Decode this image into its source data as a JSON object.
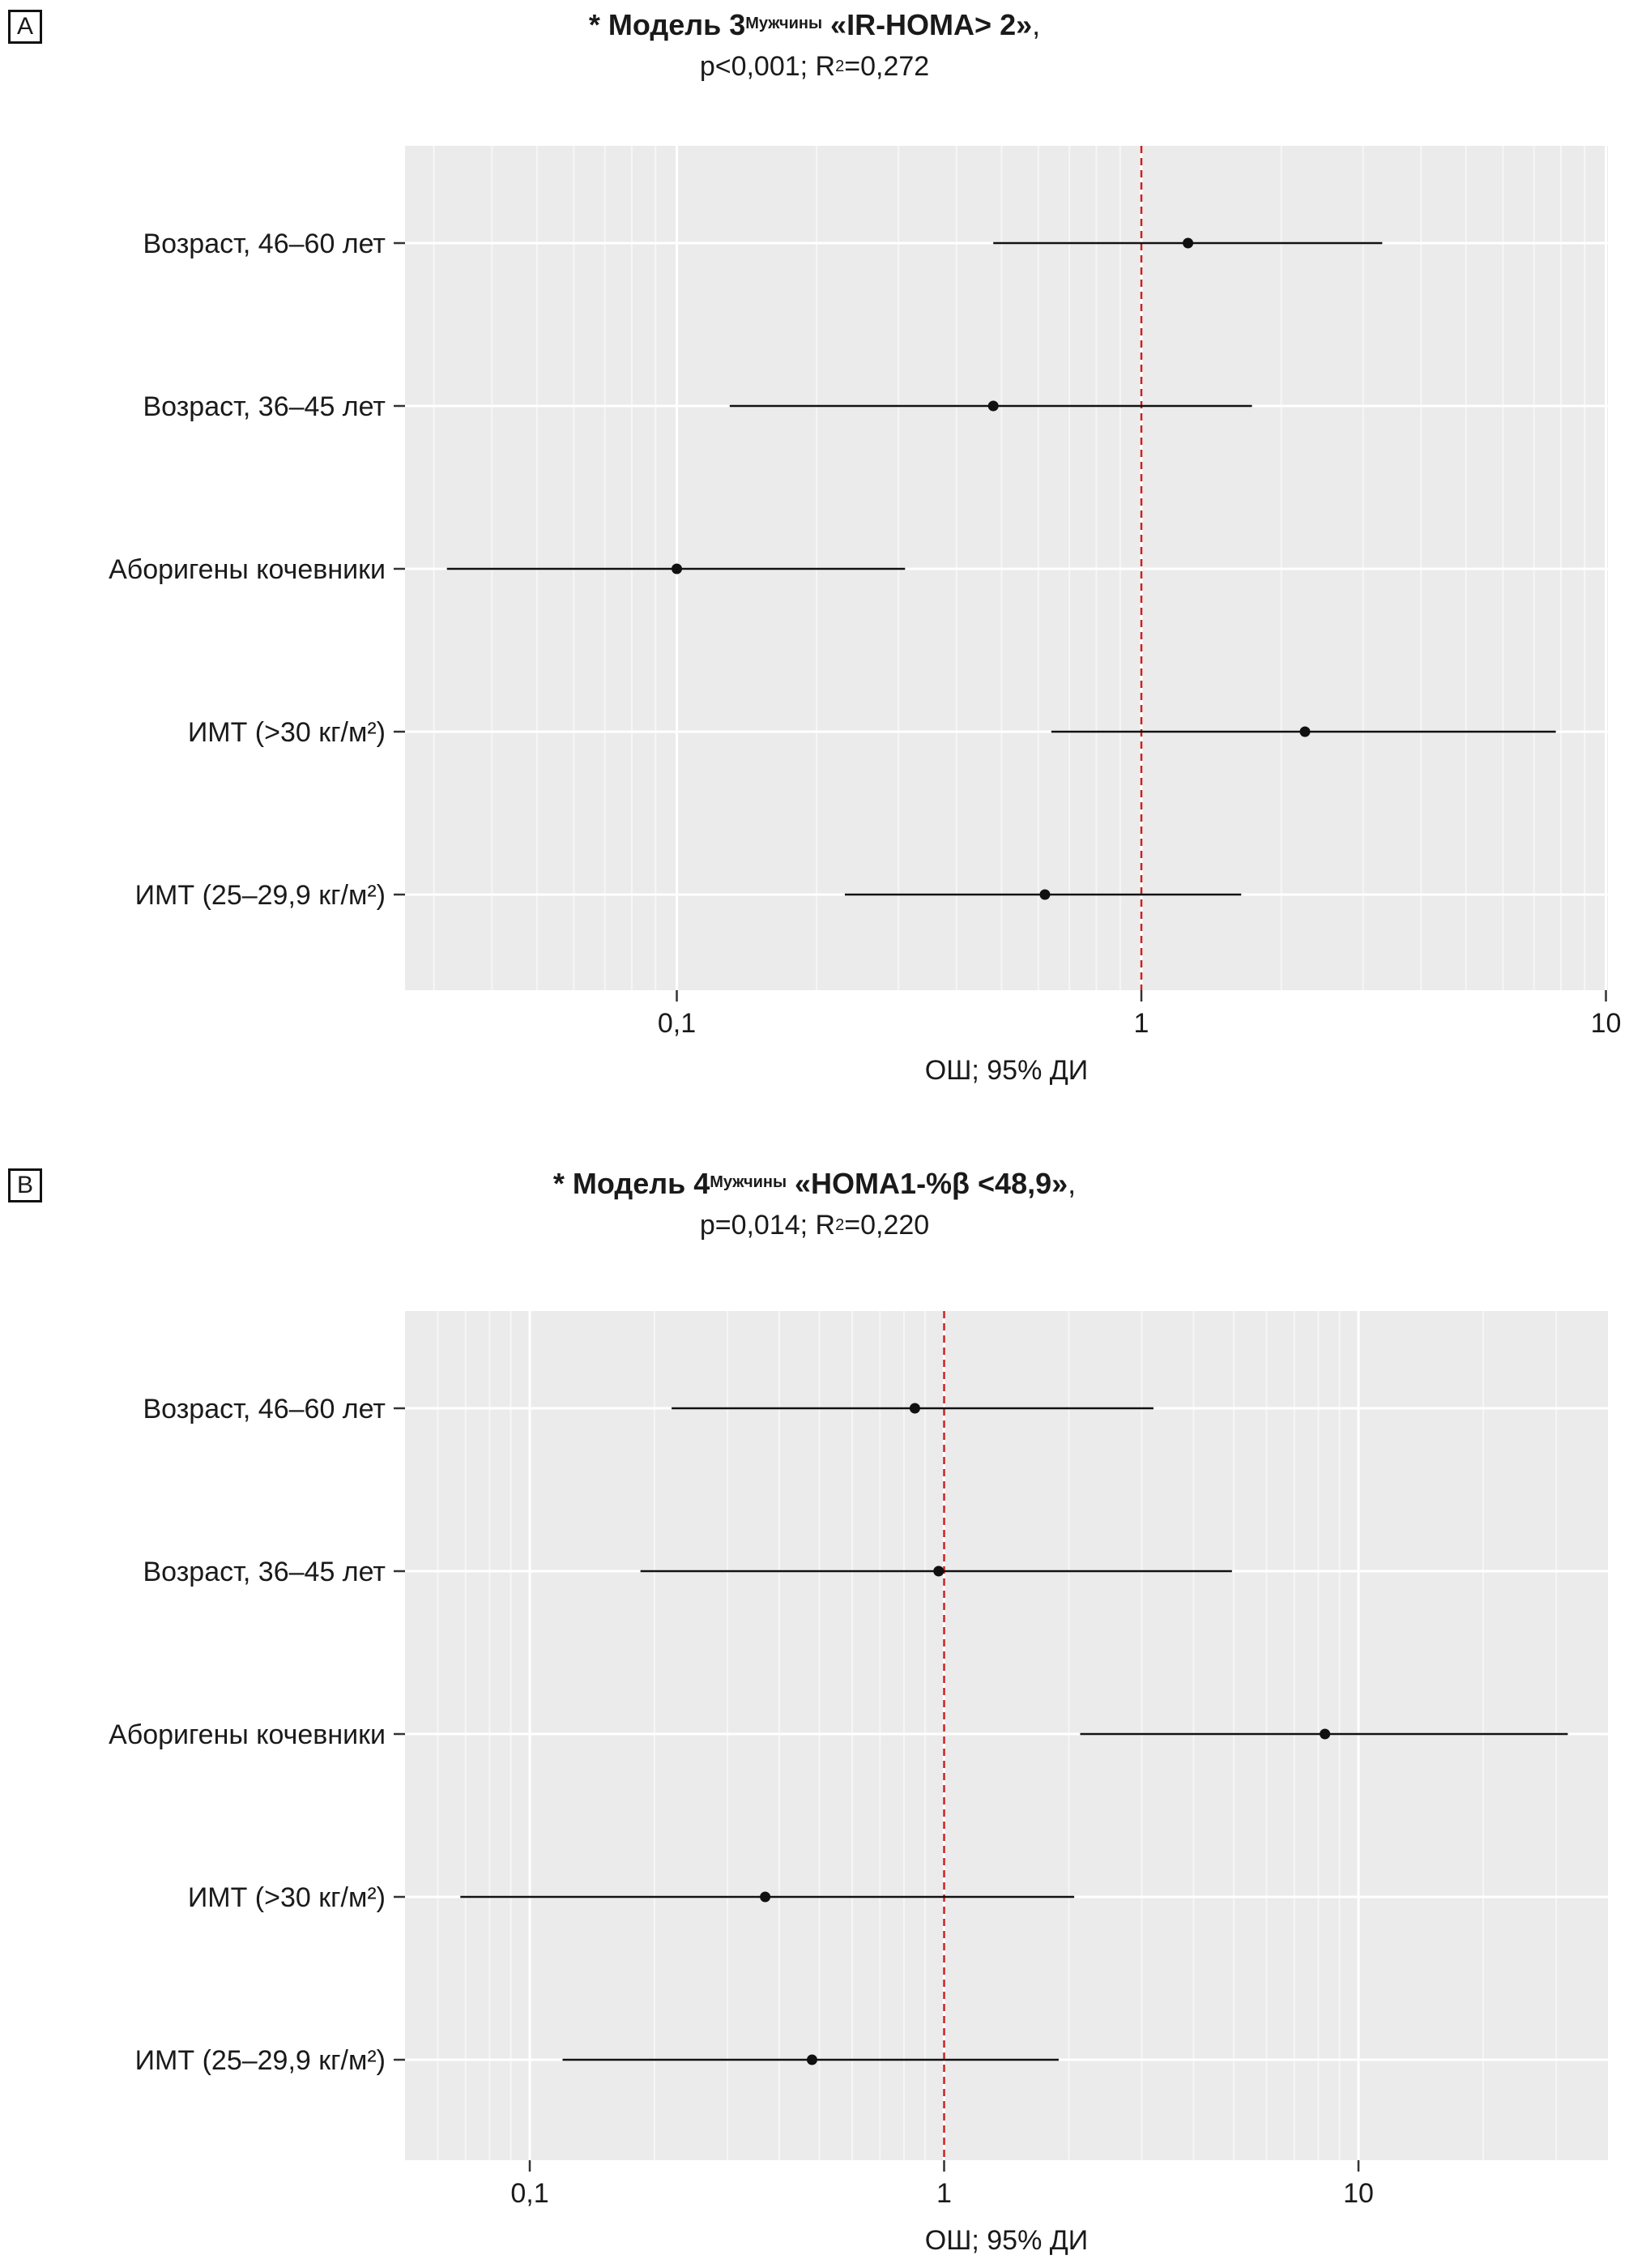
{
  "chart_data": [
    {
      "type": "forest",
      "panel_label": "A",
      "title": {
        "prefix": "* Модель 3",
        "superscript": "Мужчины",
        "suffix": " «IR-HOMA> 2»",
        "end": ","
      },
      "subtitle": {
        "before": "p<0,001; R",
        "sup": "2",
        "after": "=0,272"
      },
      "x_scale": "log",
      "xlim": [
        0.026,
        10.1
      ],
      "xticks": [
        0.1,
        1,
        10
      ],
      "xtick_labels": [
        "0,1",
        "1",
        "10"
      ],
      "xlabel": "ОШ; 95% ДИ",
      "reference_line": 1,
      "rows": [
        {
          "label": "Возраст, 46–60 лет",
          "or": 1.26,
          "ci_low": 0.48,
          "ci_high": 3.3
        },
        {
          "label": "Возраст, 36–45 лет",
          "or": 0.48,
          "ci_low": 0.13,
          "ci_high": 1.73
        },
        {
          "label": "Аборигены кочевники",
          "or": 0.1,
          "ci_low": 0.032,
          "ci_high": 0.31
        },
        {
          "label": "ИМТ (>30 кг/м²)",
          "or": 2.25,
          "ci_low": 0.64,
          "ci_high": 7.8
        },
        {
          "label": "ИМТ (25–29,9 кг/м²)",
          "or": 0.62,
          "ci_low": 0.23,
          "ci_high": 1.64
        }
      ]
    },
    {
      "type": "forest",
      "panel_label": "B",
      "title": {
        "prefix": "* Модель 4",
        "superscript": "Мужчины",
        "suffix": " «HOMA1-%β <48,9»",
        "end": ","
      },
      "subtitle": {
        "before": "p=0,014; R",
        "sup": "2",
        "after": "=0,220"
      },
      "x_scale": "log",
      "xlim": [
        0.05,
        40
      ],
      "xticks": [
        0.1,
        1,
        10
      ],
      "xtick_labels": [
        "0,1",
        "1",
        "10"
      ],
      "xlabel": "ОШ; 95% ДИ",
      "reference_line": 1,
      "rows": [
        {
          "label": "Возраст, 46–60 лет",
          "or": 0.85,
          "ci_low": 0.22,
          "ci_high": 3.2
        },
        {
          "label": "Возраст, 36–45 лет",
          "or": 0.97,
          "ci_low": 0.185,
          "ci_high": 4.95
        },
        {
          "label": "Аборигены кочевники",
          "or": 8.3,
          "ci_low": 2.13,
          "ci_high": 32.0
        },
        {
          "label": "ИМТ (>30 кг/м²)",
          "or": 0.37,
          "ci_low": 0.068,
          "ci_high": 2.06
        },
        {
          "label": "ИМТ (25–29,9 кг/м²)",
          "or": 0.48,
          "ci_low": 0.12,
          "ci_high": 1.89
        }
      ]
    }
  ],
  "colors": {
    "panel_bg": "#ebebeb",
    "grid_major": "#ffffff",
    "grid_minor": "#f6f6f6",
    "reference_line": "#cc1f1f",
    "marks": "#111111"
  }
}
